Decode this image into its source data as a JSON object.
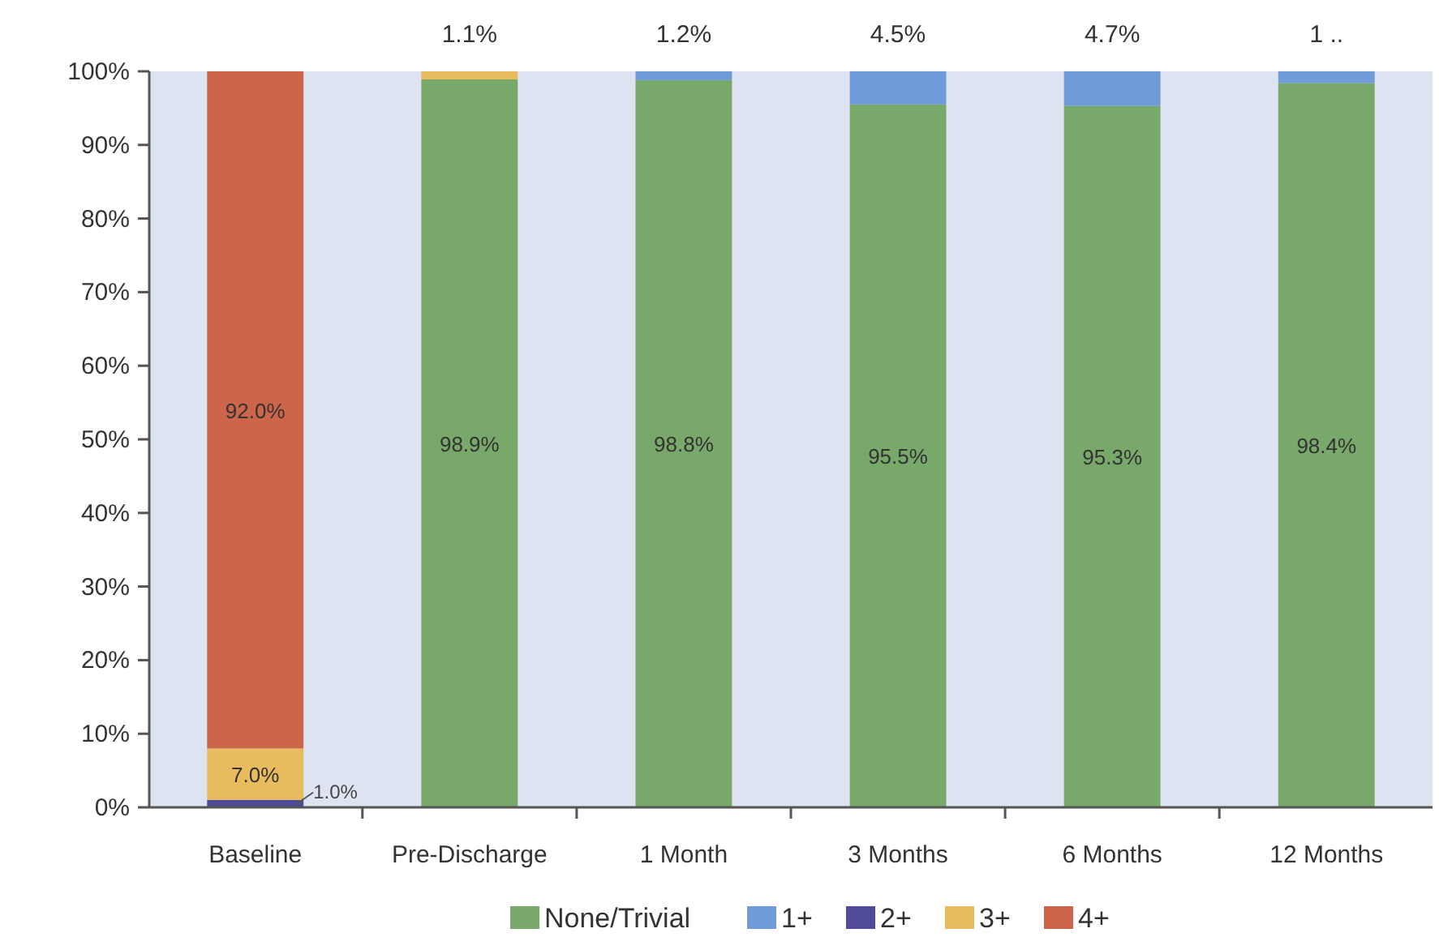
{
  "chart_data": {
    "type": "bar",
    "stacked": true,
    "categories": [
      "Baseline",
      "Pre-Discharge",
      "1 Month",
      "3 Months",
      "6 Months",
      "12 Months"
    ],
    "series": [
      {
        "name": "None/Trivial",
        "color": "#78a86a",
        "values": [
          null,
          98.9,
          98.8,
          95.5,
          95.3,
          98.4
        ],
        "value_labels": [
          null,
          "98.9%",
          "98.8%",
          "95.5%",
          "95.3%",
          "98.4%"
        ]
      },
      {
        "name": "1+",
        "color": "#6f9bd8",
        "values": [
          null,
          null,
          1.2,
          4.5,
          4.7,
          1.6
        ],
        "value_labels": [
          null,
          null,
          "1.2%",
          "4.5%",
          "4.7%",
          null
        ]
      },
      {
        "name": "2+",
        "color": "#4f4a9a",
        "values": [
          1.0,
          null,
          null,
          null,
          null,
          null
        ],
        "value_labels": [
          "1.0%",
          null,
          null,
          null,
          null,
          null
        ]
      },
      {
        "name": "3+",
        "color": "#e8bb5e",
        "values": [
          7.0,
          1.1,
          null,
          null,
          null,
          null
        ],
        "value_labels": [
          "7.0%",
          "1.1%",
          null,
          null,
          null,
          null
        ]
      },
      {
        "name": "4+",
        "color": "#cc6549",
        "values": [
          92.0,
          null,
          null,
          null,
          null,
          null
        ],
        "value_labels": [
          "92.0%",
          null,
          null,
          null,
          null,
          null
        ]
      }
    ],
    "ylim": [
      0,
      100
    ],
    "yticks": [
      {
        "value": 0,
        "label": "0%"
      },
      {
        "value": 10,
        "label": "10%"
      },
      {
        "value": 20,
        "label": "20%"
      },
      {
        "value": 30,
        "label": "30%"
      },
      {
        "value": 40,
        "label": "40%"
      },
      {
        "value": 50,
        "label": "50%"
      },
      {
        "value": 60,
        "label": "60%"
      },
      {
        "value": 70,
        "label": "70%"
      },
      {
        "value": 80,
        "label": "80%"
      },
      {
        "value": 90,
        "label": "90%"
      },
      {
        "value": 100,
        "label": "100%"
      }
    ],
    "annotations": [
      {
        "text": "1 ..",
        "x": "12 Months",
        "y": 100
      }
    ],
    "grid": false,
    "legend": "bottom"
  }
}
